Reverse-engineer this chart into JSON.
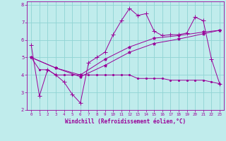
{
  "xlabel": "Windchill (Refroidissement éolien,°C)",
  "bg_color": "#c0ecec",
  "line_color": "#990099",
  "grid_color": "#90d4d4",
  "xlim": [
    -0.5,
    23.5
  ],
  "ylim": [
    2.0,
    8.2
  ],
  "yticks": [
    2,
    3,
    4,
    5,
    6,
    7,
    8
  ],
  "xticks": [
    0,
    1,
    2,
    3,
    4,
    5,
    6,
    7,
    8,
    9,
    10,
    11,
    12,
    13,
    14,
    15,
    16,
    17,
    18,
    19,
    20,
    21,
    22,
    23
  ],
  "series": [
    {
      "x": [
        0,
        1,
        2,
        3,
        4,
        5,
        6,
        7,
        8,
        9,
        10,
        11,
        12,
        13,
        14,
        15,
        16,
        17,
        18,
        19,
        20,
        21,
        22,
        23
      ],
      "y": [
        5.7,
        2.8,
        4.3,
        4.0,
        3.6,
        2.9,
        2.4,
        4.7,
        5.0,
        5.3,
        6.3,
        7.1,
        7.8,
        7.4,
        7.5,
        6.5,
        6.25,
        6.3,
        6.3,
        6.4,
        7.3,
        7.1,
        4.9,
        3.5
      ],
      "marker": "+"
    },
    {
      "x": [
        0,
        1,
        2,
        3,
        4,
        5,
        6,
        7,
        8,
        9,
        10,
        11,
        12,
        13,
        14,
        15,
        16,
        17,
        18,
        19,
        20,
        21,
        22,
        23
      ],
      "y": [
        5.0,
        4.3,
        4.3,
        4.0,
        4.0,
        4.0,
        4.0,
        4.0,
        4.0,
        4.0,
        4.0,
        4.0,
        4.0,
        3.8,
        3.8,
        3.8,
        3.8,
        3.7,
        3.7,
        3.7,
        3.7,
        3.7,
        3.6,
        3.5
      ],
      "marker": "."
    },
    {
      "x": [
        0,
        3,
        6,
        9,
        12,
        15,
        18,
        21,
        23
      ],
      "y": [
        5.0,
        4.4,
        4.0,
        4.9,
        5.6,
        6.1,
        6.25,
        6.45,
        6.55
      ],
      "marker": "*"
    },
    {
      "x": [
        0,
        3,
        6,
        9,
        12,
        15,
        18,
        21,
        23
      ],
      "y": [
        5.0,
        4.4,
        3.9,
        4.55,
        5.3,
        5.8,
        6.05,
        6.35,
        6.55
      ],
      "marker": "*"
    }
  ]
}
